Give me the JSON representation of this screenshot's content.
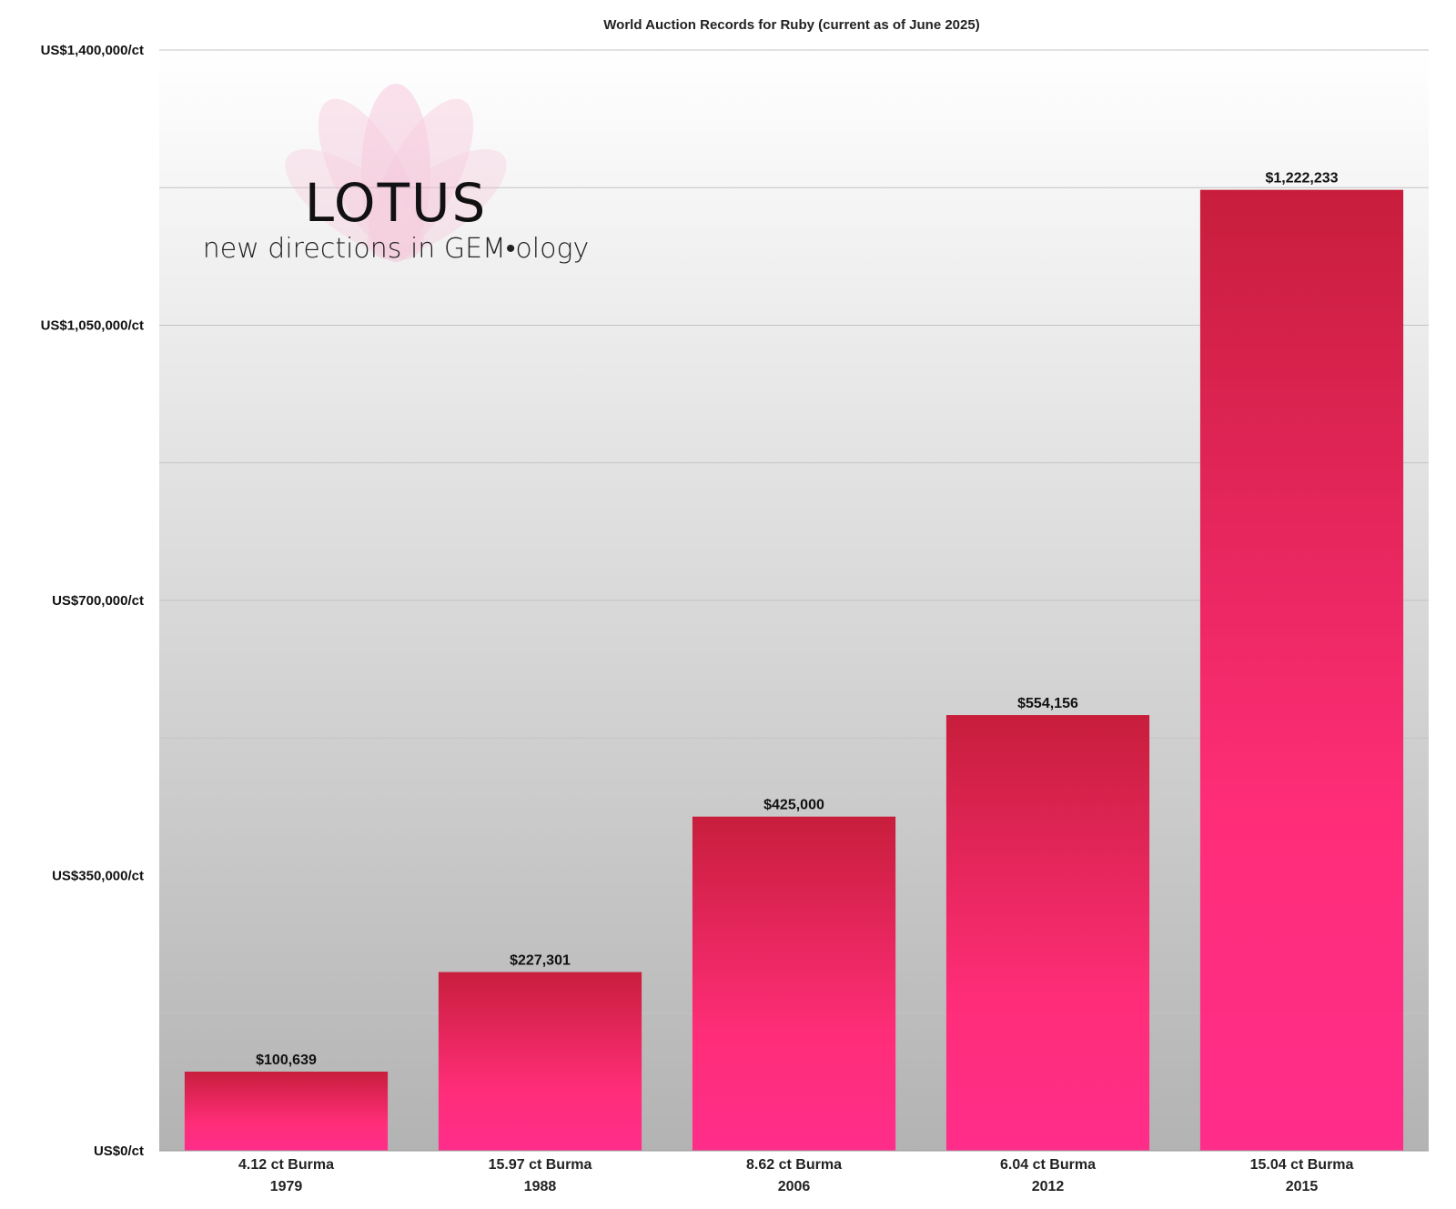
{
  "chart_data": {
    "type": "bar",
    "title": "World Auction Records for Ruby (current as of June 2025)",
    "categories": [
      [
        "4.12 ct Burma",
        "1979"
      ],
      [
        "15.97 ct Burma",
        "1988"
      ],
      [
        "8.62 ct Burma",
        "2006"
      ],
      [
        "6.04 ct Burma",
        "2012"
      ],
      [
        "15.04 ct Burma",
        "2015"
      ]
    ],
    "values": [
      100639,
      227301,
      425000,
      554156,
      1222233
    ],
    "value_labels": [
      "$100,639",
      "$227,301",
      "$425,000",
      "$554,156",
      "$1,222,233"
    ],
    "ylim": [
      0,
      1400000
    ],
    "yticks": [
      0,
      350000,
      700000,
      1050000,
      1400000
    ],
    "ytick_labels": [
      "US$0/ct",
      "US$350,000/ct",
      "US$700,000/ct",
      "US$1,050,000/ct",
      "US$1,400,000/ct"
    ],
    "gridlines": [
      175000,
      525000,
      875000,
      1225000
    ],
    "grid": true,
    "bar_color_top": "#c81e3c",
    "bar_color_bottom": "#ff2d8a",
    "background_top": "#ffffff",
    "background_bottom": "#b3b3b3"
  },
  "logo": {
    "name": "LOTUS",
    "tagline": "new directions in GEM•ology",
    "icon": "lotus-flower-icon",
    "color": "#f5a9c9"
  }
}
